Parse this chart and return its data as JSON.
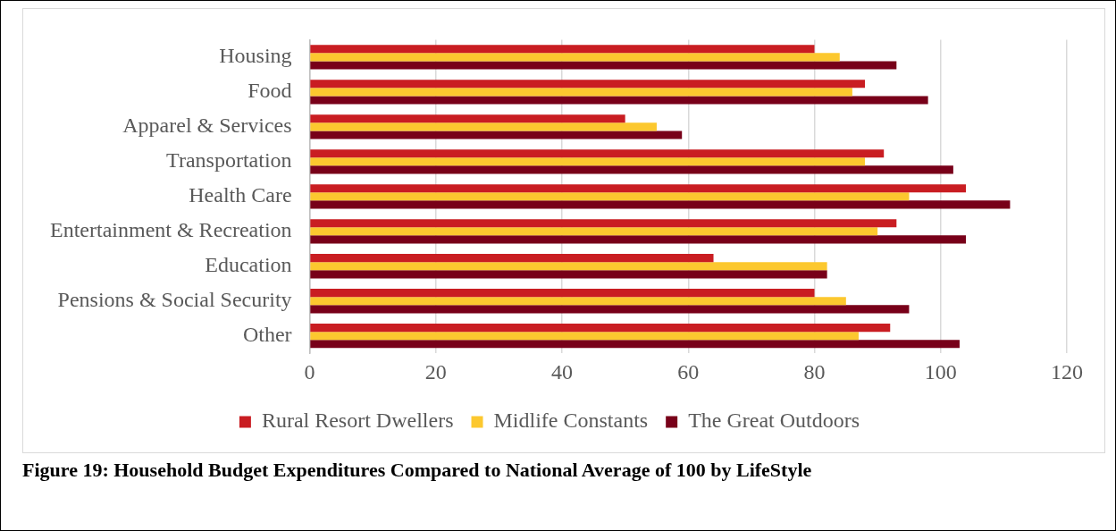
{
  "chart_data": {
    "type": "bar",
    "orientation": "horizontal",
    "categories": [
      "Housing",
      "Food",
      "Apparel & Services",
      "Transportation",
      "Health Care",
      "Entertainment & Recreation",
      "Education",
      "Pensions & Social Security",
      "Other"
    ],
    "series": [
      {
        "name": "Rural Resort Dwellers",
        "color": "#c91d22",
        "values": [
          80,
          88,
          50,
          91,
          104,
          93,
          64,
          80,
          92
        ]
      },
      {
        "name": "Midlife Constants",
        "color": "#fcc82f",
        "values": [
          84,
          86,
          55,
          88,
          95,
          90,
          82,
          85,
          87
        ]
      },
      {
        "name": "The Great Outdoors",
        "color": "#780019",
        "values": [
          93,
          98,
          59,
          102,
          111,
          104,
          82,
          95,
          103
        ]
      }
    ],
    "xlim": [
      0,
      120
    ],
    "xticks": [
      0,
      20,
      40,
      60,
      80,
      100,
      120
    ],
    "grid": "x",
    "legend": "bottom",
    "annotations": [
      "Figure 19: Household Budget Expenditures Compared to National Average of 100 by LifeStyle"
    ]
  }
}
